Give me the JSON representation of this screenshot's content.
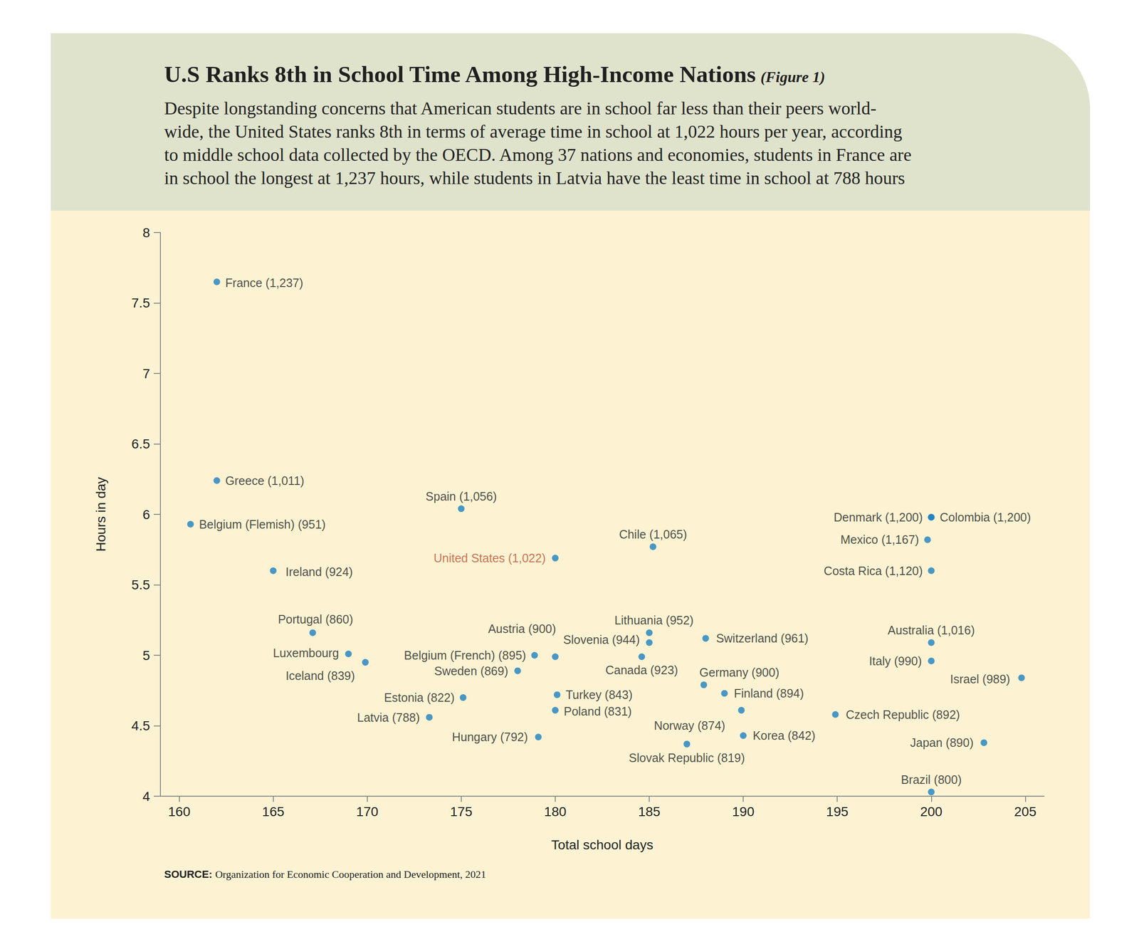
{
  "chart_data": {
    "type": "scatter",
    "title": "U.S Ranks 8th in School Time Among High-Income Nations",
    "figure_label": "(Figure 1)",
    "subtitle": "Despite longstanding concerns that American students are in school far less than their peers world-\nwide, the United States ranks 8th in terms of average time in school at 1,022 hours per year, according\nto middle school data collected by the OECD. Among 37 nations and economies, students in France are\nin school the longest at 1,237 hours, while students in Latvia have the least time in school at 788 hours",
    "x_label": "Total school days",
    "y_label": "Hours in day",
    "source_label": "SOURCE:",
    "source": "Organization for Economic Cooperation and Development, 2021",
    "xlim": [
      159,
      206
    ],
    "xticks": [
      160,
      165,
      170,
      175,
      180,
      185,
      190,
      195,
      200,
      205
    ],
    "ylim": [
      4,
      8
    ],
    "yticks": [
      4,
      4.5,
      5,
      5.5,
      6,
      6.5,
      7,
      7.5,
      8
    ],
    "grid": false,
    "color": "#1b7fc0",
    "points": [
      {
        "label": "France (1,237)",
        "x": 162,
        "y": 7.65
      },
      {
        "label": "Greece (1,011)",
        "x": 162,
        "y": 6.24
      },
      {
        "label": "Belgium (Flemish) (951)",
        "x": 160.6,
        "y": 5.93
      },
      {
        "label": "Ireland (924)",
        "x": 165,
        "y": 5.6
      },
      {
        "label": "Spain (1,056)",
        "x": 175,
        "y": 6.04
      },
      {
        "label": "United States (1,022)",
        "x": 180,
        "y": 5.69
      },
      {
        "label": "Chile (1,065)",
        "x": 185.2,
        "y": 5.77
      },
      {
        "label": "Denmark (1,200)",
        "x": 200,
        "y": 5.98
      },
      {
        "label": "Colombia (1,200)",
        "x": 200,
        "y": 5.98
      },
      {
        "label": "Mexico (1,167)",
        "x": 199.8,
        "y": 5.82
      },
      {
        "label": "Costa Rica (1,120)",
        "x": 200,
        "y": 5.6
      },
      {
        "label": "Portugal (860)",
        "x": 167.1,
        "y": 5.16
      },
      {
        "label": "Luxembourg",
        "x": 169,
        "y": 5.01
      },
      {
        "label": "Iceland (839)",
        "x": 169.9,
        "y": 4.95
      },
      {
        "label": "Belgium (French) (895)",
        "x": 178.9,
        "y": 5.0
      },
      {
        "label": "Austria (900)",
        "x": 180,
        "y": 4.99
      },
      {
        "label": "Sweden (869)",
        "x": 178,
        "y": 4.89
      },
      {
        "label": "Estonia (822)",
        "x": 175.1,
        "y": 4.7
      },
      {
        "label": "Latvia (788)",
        "x": 173.3,
        "y": 4.56
      },
      {
        "label": "Hungary (792)",
        "x": 179.1,
        "y": 4.42
      },
      {
        "label": "Turkey (843)",
        "x": 180.1,
        "y": 4.72
      },
      {
        "label": "Poland (831)",
        "x": 180,
        "y": 4.61
      },
      {
        "label": "Lithuania (952)",
        "x": 185,
        "y": 5.16
      },
      {
        "label": "Slovenia (944)",
        "x": 185,
        "y": 5.09
      },
      {
        "label": "Canada (923)",
        "x": 184.6,
        "y": 4.99
      },
      {
        "label": "Switzerland (961)",
        "x": 188,
        "y": 5.12
      },
      {
        "label": "Germany (900)",
        "x": 187.9,
        "y": 4.79
      },
      {
        "label": "Finland (894)",
        "x": 189,
        "y": 4.73
      },
      {
        "label": "Norway (874)",
        "x": 189.9,
        "y": 4.61
      },
      {
        "label": "Korea (842)",
        "x": 190,
        "y": 4.43
      },
      {
        "label": "Slovak Republic (819)",
        "x": 187,
        "y": 4.37
      },
      {
        "label": "Czech Republic (892)",
        "x": 194.9,
        "y": 4.58
      },
      {
        "label": "Australia (1,016)",
        "x": 200,
        "y": 5.09
      },
      {
        "label": "Italy (990)",
        "x": 200,
        "y": 4.96
      },
      {
        "label": "Israel (989)",
        "x": 204.8,
        "y": 4.84
      },
      {
        "label": "Japan (890)",
        "x": 202.8,
        "y": 4.38
      },
      {
        "label": "Brazil (800)",
        "x": 200,
        "y": 4.03
      }
    ]
  }
}
